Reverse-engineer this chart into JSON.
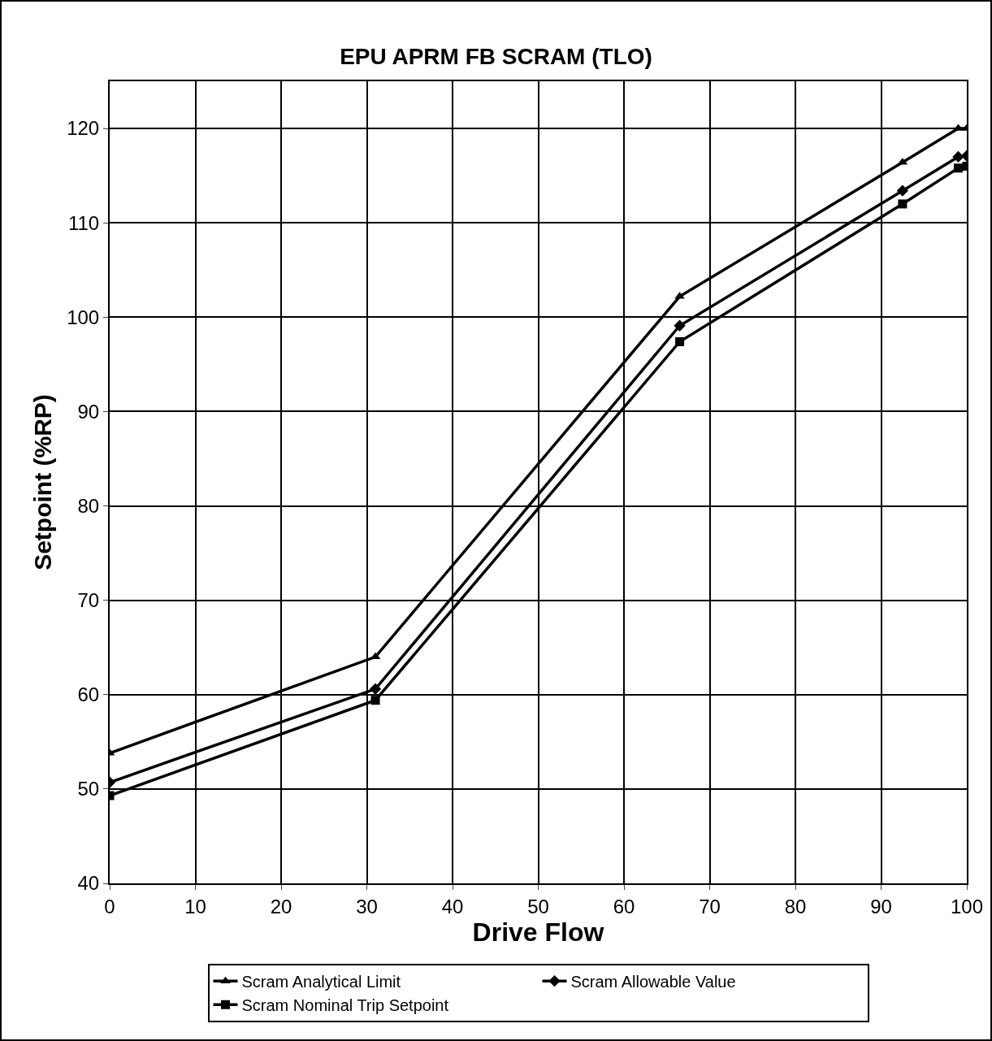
{
  "chart_data": {
    "type": "line",
    "title": "EPU APRM FB SCRAM (TLO)",
    "xlabel": "Drive Flow",
    "ylabel": "Setpoint (%RP)",
    "x": [
      0,
      31,
      66.5,
      92.5,
      99,
      100
    ],
    "series": [
      {
        "name": "Scram Analytical Limit",
        "color": "#000000",
        "marker": "triangle",
        "values": [
          53.8,
          64,
          102.2,
          116.4,
          120,
          120
        ]
      },
      {
        "name": "Scram Allowable Value",
        "color": "#000000",
        "marker": "diamond",
        "values": [
          50.7,
          60.6,
          99.1,
          113.4,
          117,
          117.1
        ]
      },
      {
        "name": "Scram Nominal Trip Setpoint",
        "color": "#000000",
        "marker": "square",
        "values": [
          49.3,
          59.4,
          97.4,
          112,
          115.8,
          116
        ]
      }
    ],
    "xlim": [
      0,
      100
    ],
    "xticks": [
      0,
      10,
      20,
      30,
      40,
      50,
      60,
      70,
      80,
      90,
      100
    ],
    "ylim": [
      40,
      125
    ],
    "yticks": [
      40,
      50,
      60,
      70,
      80,
      90,
      100,
      110,
      120
    ],
    "grid": true,
    "legend": "bottom",
    "line_style": "solid"
  }
}
